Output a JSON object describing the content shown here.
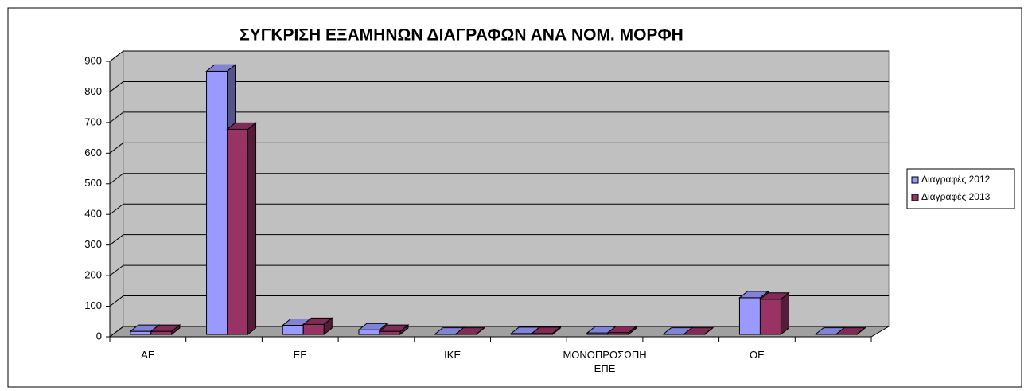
{
  "chart_data": {
    "type": "bar3d",
    "title": "ΣΥΓΚΡΙΣΗ ΕΞΑΜΗΝΩΝ ΔΙΑΓΡΑΦΩΝ ΑΝΑ ΝΟΜ. ΜΟΡΦΗ",
    "categories": [
      "ΑΕ",
      null,
      "ΕΕ",
      null,
      "ΙΚΕ",
      null,
      "ΜΟΝΟΠΡΟΣΩΠΗ ΕΠΕ",
      null,
      "ΟΕ",
      null
    ],
    "series": [
      {
        "name": "Διαγραφές 2012",
        "color": "#9999ff",
        "values": [
          10,
          860,
          30,
          15,
          1,
          3,
          5,
          1,
          120,
          1
        ]
      },
      {
        "name": "Διαγραφές 2013",
        "color": "#993366",
        "values": [
          10,
          670,
          33,
          10,
          1,
          3,
          6,
          1,
          115,
          1
        ]
      }
    ],
    "ylim": [
      0,
      900
    ],
    "yticks": [
      0,
      100,
      200,
      300,
      400,
      500,
      600,
      700,
      800,
      900
    ],
    "grid": true,
    "legend": "right"
  }
}
